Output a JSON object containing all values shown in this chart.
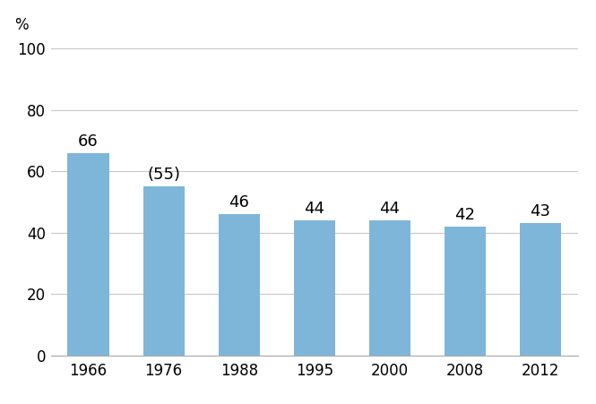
{
  "categories": [
    "1966",
    "1976",
    "1988",
    "1995",
    "2000",
    "2008",
    "2012"
  ],
  "values": [
    66,
    55,
    46,
    44,
    44,
    42,
    43
  ],
  "labels": [
    "66",
    "(55)",
    "46",
    "44",
    "44",
    "42",
    "43"
  ],
  "bar_color": "#7EB6D9",
  "ylabel": "%",
  "ylim": [
    0,
    100
  ],
  "yticks": [
    0,
    20,
    40,
    60,
    80,
    100
  ],
  "grid_color": "#C8C8C8",
  "background_color": "#FFFFFF",
  "label_fontsize": 13,
  "tick_fontsize": 12,
  "ylabel_fontsize": 12,
  "bar_width": 0.55
}
